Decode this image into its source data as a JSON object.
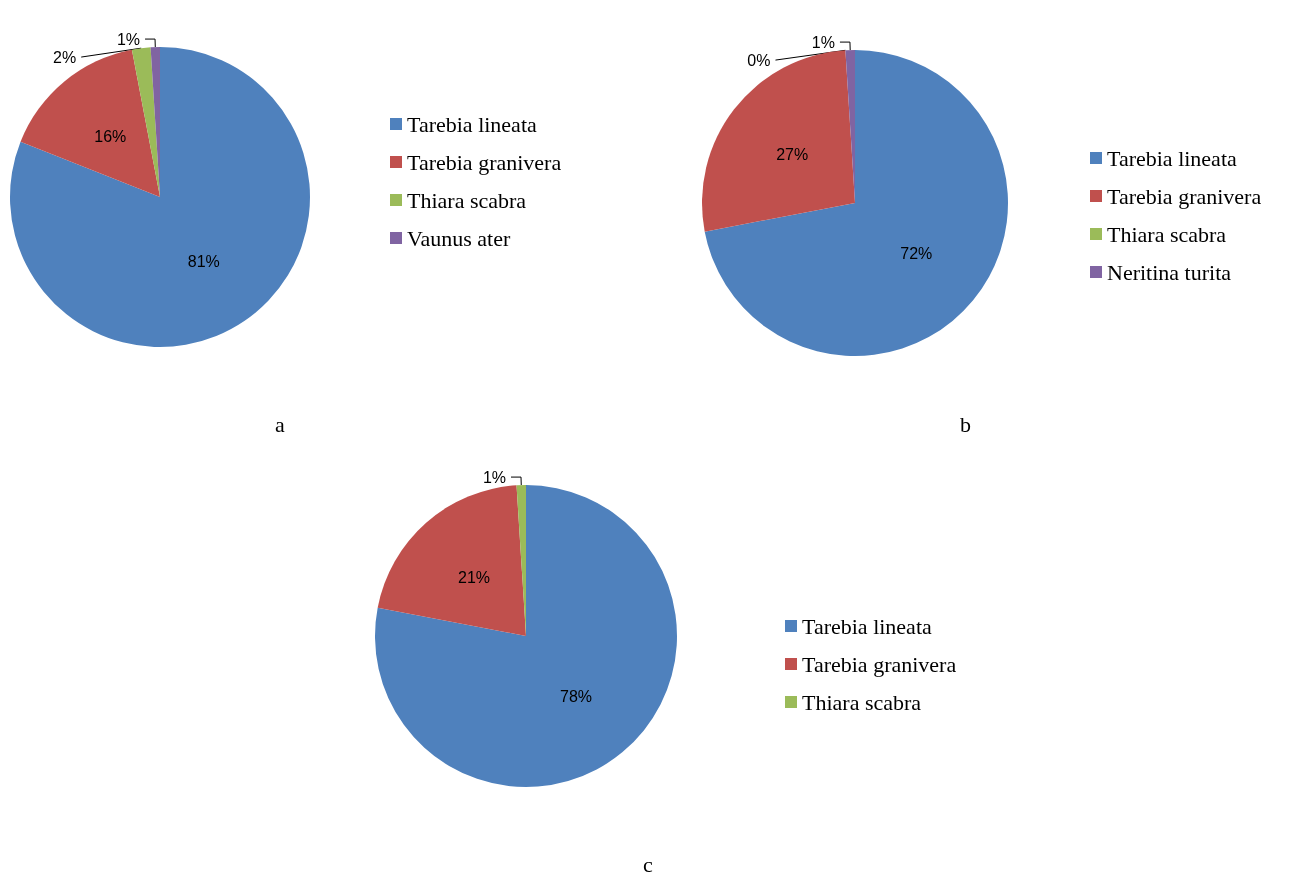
{
  "chart_data": [
    {
      "type": "pie",
      "title": "a",
      "categories": [
        "Tarebia lineata",
        "Tarebia granivera",
        "Thiara scabra",
        "Vaunus ater"
      ],
      "values": [
        81,
        16,
        2,
        1
      ],
      "value_labels": [
        "81%",
        "16%",
        "2%",
        "1%"
      ],
      "colors": [
        "#4f81bd",
        "#c0504d",
        "#9bbb59",
        "#8064a2"
      ],
      "legend": "right"
    },
    {
      "type": "pie",
      "title": "b",
      "categories": [
        "Tarebia lineata",
        "Tarebia granivera",
        "Thiara scabra",
        "Neritina turita"
      ],
      "values": [
        72,
        27,
        0,
        1
      ],
      "value_labels": [
        "72%",
        "27%",
        "0%",
        "1%"
      ],
      "colors": [
        "#4f81bd",
        "#c0504d",
        "#9bbb59",
        "#8064a2"
      ],
      "legend": "right"
    },
    {
      "type": "pie",
      "title": "c",
      "categories": [
        "Tarebia lineata",
        "Tarebia granivera",
        "Thiara scabra"
      ],
      "values": [
        78,
        21,
        1
      ],
      "value_labels": [
        "78%",
        "21%",
        "1%"
      ],
      "colors": [
        "#4f81bd",
        "#c0504d",
        "#9bbb59"
      ],
      "legend": "right"
    }
  ]
}
